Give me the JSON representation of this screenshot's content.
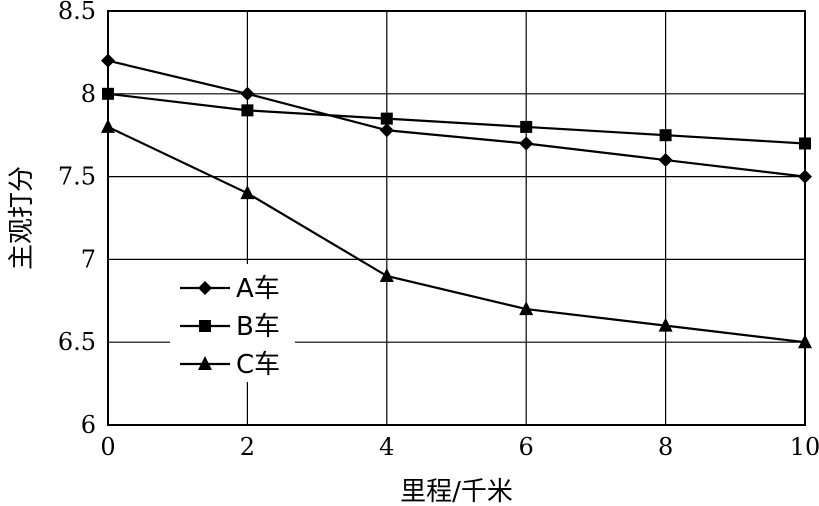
{
  "chart_data": {
    "type": "line",
    "title": "",
    "xlabel": "里程/千米",
    "ylabel": "主观打分",
    "x": [
      0,
      2,
      4,
      6,
      8,
      10
    ],
    "xlim": [
      0,
      10
    ],
    "ylim": [
      6,
      8.5
    ],
    "xticks": [
      "0",
      "2",
      "4",
      "6",
      "8",
      "10"
    ],
    "yticks": [
      "6",
      "6.5",
      "7",
      "7.5",
      "8",
      "8.5"
    ],
    "grid": true,
    "legend_position": "left",
    "series": [
      {
        "name": "A车",
        "marker": "diamond",
        "values": [
          8.2,
          8.0,
          7.78,
          7.7,
          7.6,
          7.5
        ]
      },
      {
        "name": "B车",
        "marker": "square",
        "values": [
          8.0,
          7.9,
          7.85,
          7.8,
          7.75,
          7.7
        ]
      },
      {
        "name": "C车",
        "marker": "triangle",
        "values": [
          7.8,
          7.4,
          6.9,
          6.7,
          6.6,
          6.5
        ]
      }
    ]
  }
}
